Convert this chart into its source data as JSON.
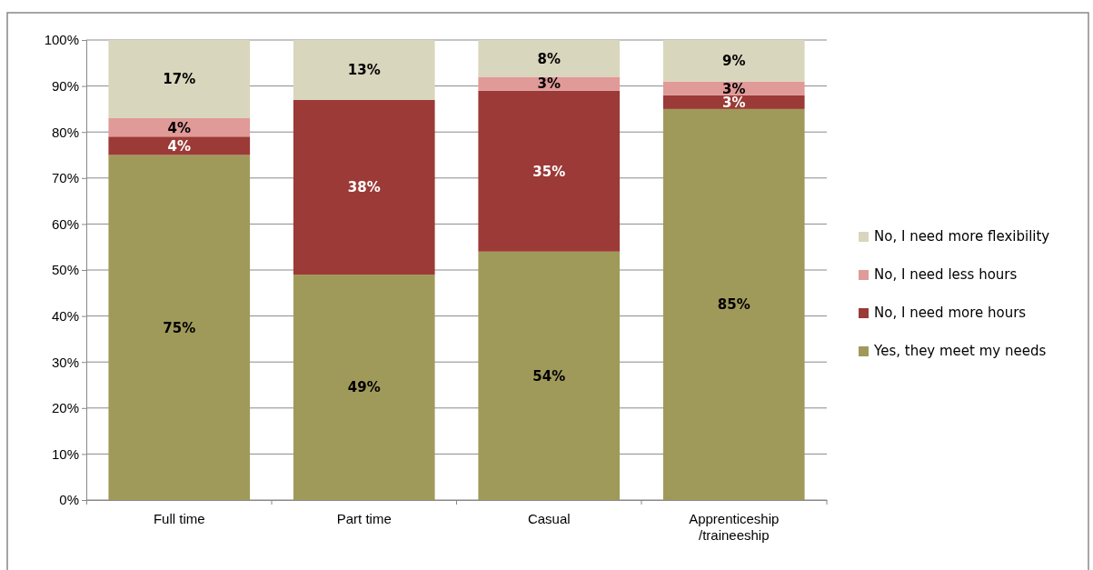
{
  "chart_data": {
    "type": "bar",
    "stacked": true,
    "categories": [
      "Full time",
      "Part time",
      "Casual",
      "Apprenticeship /traineeship"
    ],
    "series": [
      {
        "name": "Yes, they meet my needs",
        "color": "#a09a5a",
        "values": [
          75,
          49,
          54,
          85
        ],
        "value_labels": [
          "75%",
          "49%",
          "54%",
          "85%"
        ]
      },
      {
        "name": "No, I need more hours",
        "color": "#9b3a36",
        "values": [
          4,
          38,
          35,
          3
        ],
        "value_labels": [
          "4%",
          "38%",
          "35%",
          "3%"
        ]
      },
      {
        "name": "No, I need less hours",
        "color": "#e09a98",
        "values": [
          4,
          0,
          3,
          3
        ],
        "value_labels": [
          "4%",
          null,
          "3%",
          "3%"
        ]
      },
      {
        "name": "No, I need more flexibility",
        "color": "#d8d6bc",
        "values": [
          17,
          13,
          8,
          9
        ],
        "value_labels": [
          "17%",
          "13%",
          "8%",
          "9%"
        ]
      }
    ],
    "ylim": [
      0,
      100
    ],
    "yticks": [
      {
        "value": 0,
        "label": "0%"
      },
      {
        "value": 10,
        "label": "10%"
      },
      {
        "value": 20,
        "label": "20%"
      },
      {
        "value": 30,
        "label": "30%"
      },
      {
        "value": 40,
        "label": "40%"
      },
      {
        "value": 50,
        "label": "50%"
      },
      {
        "value": 60,
        "label": "60%"
      },
      {
        "value": 70,
        "label": "70%"
      },
      {
        "value": 80,
        "label": "80%"
      },
      {
        "value": 90,
        "label": "90%"
      },
      {
        "value": 100,
        "label": "100%"
      }
    ],
    "grid": "y",
    "legend": "right"
  }
}
